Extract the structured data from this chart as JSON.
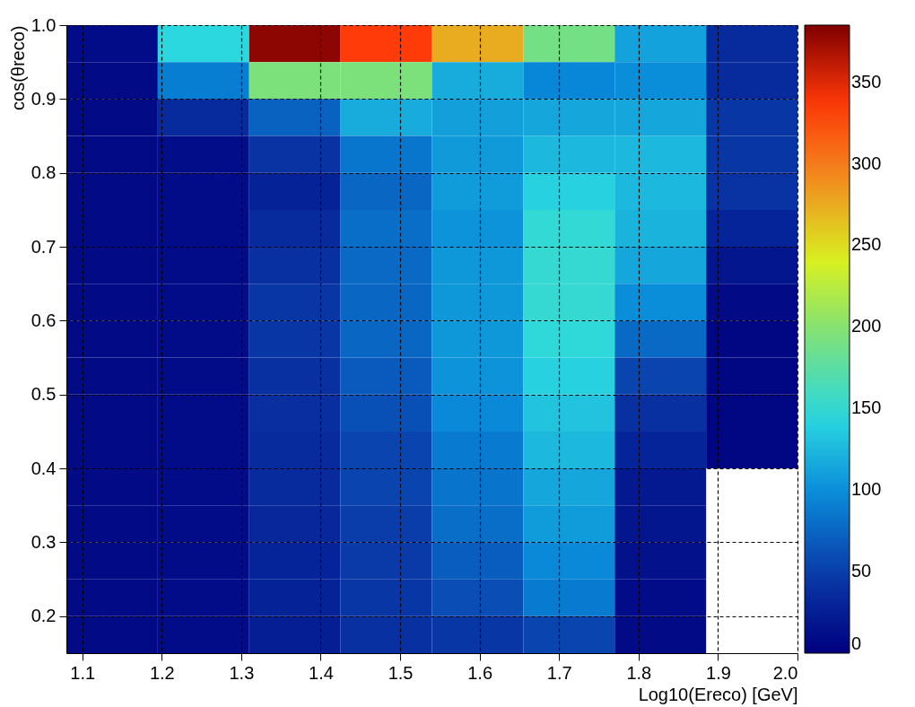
{
  "chart_data": {
    "type": "heatmap",
    "xlabel": "Log10(Ereco) [GeV]",
    "ylabel": "cos(θreco)",
    "x": [
      1.1375,
      1.2525,
      1.3675,
      1.4825,
      1.5975,
      1.7125,
      1.8275,
      1.9425
    ],
    "y": [
      0.975,
      0.925,
      0.875,
      0.825,
      0.775,
      0.725,
      0.675,
      0.625,
      0.575,
      0.525,
      0.475,
      0.425,
      0.375,
      0.325,
      0.275,
      0.225,
      0.175
    ],
    "cells": [
      [
        10,
        145,
        380,
        335,
        275,
        190,
        112,
        35
      ],
      [
        8,
        90,
        195,
        195,
        118,
        95,
        100,
        35
      ],
      [
        8,
        35,
        72,
        118,
        110,
        115,
        115,
        45
      ],
      [
        8,
        12,
        42,
        85,
        107,
        125,
        125,
        45
      ],
      [
        8,
        10,
        28,
        75,
        108,
        140,
        125,
        42
      ],
      [
        8,
        10,
        35,
        80,
        103,
        150,
        122,
        30
      ],
      [
        8,
        10,
        40,
        77,
        105,
        152,
        115,
        18
      ],
      [
        8,
        10,
        45,
        75,
        105,
        152,
        100,
        8
      ],
      [
        8,
        10,
        45,
        75,
        105,
        148,
        78,
        5
      ],
      [
        8,
        10,
        40,
        68,
        103,
        140,
        55,
        5
      ],
      [
        8,
        10,
        38,
        62,
        97,
        132,
        40,
        5
      ],
      [
        8,
        10,
        35,
        55,
        88,
        125,
        30,
        5
      ],
      [
        8,
        10,
        35,
        55,
        84,
        115,
        20,
        null
      ],
      [
        8,
        10,
        32,
        50,
        80,
        108,
        18,
        null
      ],
      [
        8,
        10,
        30,
        48,
        70,
        97,
        14,
        null
      ],
      [
        8,
        10,
        28,
        45,
        60,
        88,
        10,
        null
      ],
      [
        8,
        10,
        25,
        40,
        45,
        55,
        8,
        null
      ]
    ],
    "xlim": [
      1.08,
      2.0
    ],
    "xticks": [
      1.1,
      1.2,
      1.3,
      1.4,
      1.5,
      1.6,
      1.7,
      1.8,
      1.9,
      {
        "value": 2.0,
        "label": "2.0"
      }
    ],
    "ylim": [
      0.15,
      1.0
    ],
    "yticks": [
      0.2,
      0.3,
      0.4,
      0.5,
      0.6,
      0.7,
      0.8,
      0.9,
      {
        "value": 1.0,
        "label": "1.0"
      }
    ],
    "clim": [
      0,
      385
    ],
    "cticks": [
      0,
      50,
      100,
      150,
      200,
      250,
      300,
      350
    ],
    "colors": [
      "#00007f",
      "#0a3aa8",
      "#0888d8",
      "#2ad8e0",
      "#78e080",
      "#d8f020",
      "#f09020",
      "#ff3808",
      "#800000"
    ],
    "grid": true
  }
}
